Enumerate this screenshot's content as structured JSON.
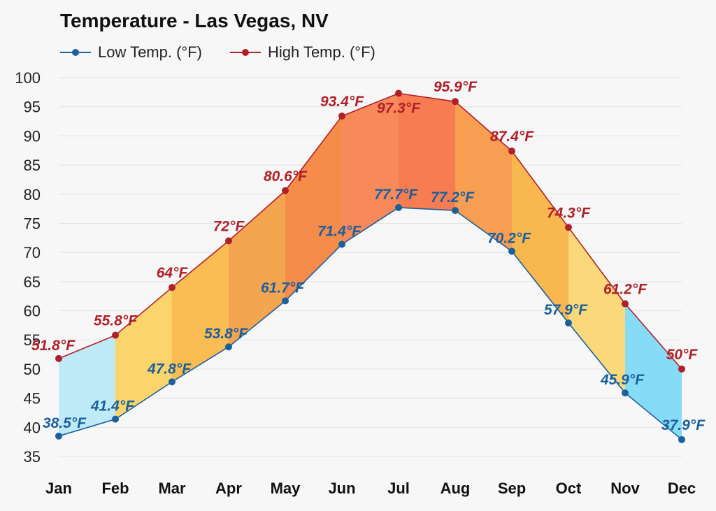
{
  "chart_data": {
    "type": "area",
    "title": "Temperature - Las Vegas, NV",
    "categories": [
      "Jan",
      "Feb",
      "Mar",
      "Apr",
      "May",
      "Jun",
      "Jul",
      "Aug",
      "Sep",
      "Oct",
      "Nov",
      "Dec"
    ],
    "series": [
      {
        "name": "Low Temp. (°F)",
        "color": "#1b5f9c",
        "values": [
          38.5,
          41.4,
          47.8,
          53.8,
          61.7,
          71.4,
          77.7,
          77.2,
          70.2,
          57.9,
          45.9,
          37.9
        ],
        "labels": [
          "38.5°F",
          "41.4°F",
          "47.8°F",
          "53.8°F",
          "61.7°F",
          "71.4°F",
          "77.7°F",
          "77.2°F",
          "70.2°F",
          "57.9°F",
          "45.9°F",
          "37.9°F"
        ]
      },
      {
        "name": "High Temp. (°F)",
        "color": "#b0202a",
        "values": [
          51.8,
          55.8,
          64,
          72,
          80.6,
          93.4,
          97.3,
          95.9,
          87.4,
          74.3,
          61.2,
          50
        ],
        "labels": [
          "51.8°F",
          "55.8°F",
          "64°F",
          "72°F",
          "80.6°F",
          "93.4°F",
          "97.3°F",
          "95.9°F",
          "87.4°F",
          "74.3°F",
          "61.2°F",
          "50°F"
        ]
      }
    ],
    "band_colors": [
      "#bfeaf8",
      "#fbd56b",
      "#f9bd53",
      "#f4a550",
      "#f58c4a",
      "#f7895a",
      "#f77c52",
      "#f79e53",
      "#f9b74f",
      "#fbd97a",
      "#86dcf6"
    ],
    "xlabel": "",
    "ylabel": "",
    "ylim": [
      35,
      100
    ],
    "yticks": [
      35,
      40,
      45,
      50,
      55,
      60,
      65,
      70,
      75,
      80,
      85,
      90,
      95,
      100
    ],
    "grid": true,
    "legend": "top-left"
  }
}
